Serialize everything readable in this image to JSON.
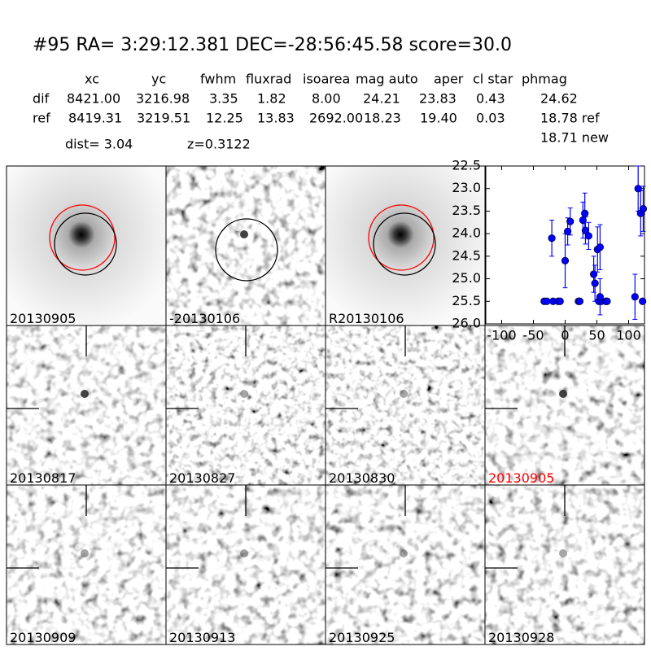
{
  "header": {
    "title": "#95   RA= 3:29:12.381 DEC=-28:56:45.58      score=30.0",
    "dist": "dist=  3.04",
    "z": "z=0.3122",
    "phmag_new": "18.71 new"
  },
  "table": {
    "columns": [
      "xc",
      "yc",
      "fwhm",
      "fluxrad",
      "isoarea",
      "mag auto",
      "aper",
      "cl star",
      "phmag"
    ],
    "rows": [
      [
        "dif",
        "8421.00",
        "3216.98",
        "3.35",
        "1.82",
        "8.00",
        "24.21",
        "23.83",
        "0.43",
        "24.62"
      ],
      [
        "ref",
        "8419.31",
        "3219.51",
        "12.25",
        "13.83",
        "2692.00",
        "18.23",
        "19.40",
        "0.03",
        "18.78 ref"
      ]
    ]
  },
  "panels": [
    "20130905",
    "-20130106",
    "R20130106",
    "20130817",
    "20130827",
    "20130830",
    "20130905",
    "20130909",
    "20130913",
    "20130925",
    "20130928"
  ],
  "chart_data": {
    "type": "scatter",
    "color": "#0000ff",
    "x": [
      -33,
      -29,
      -19,
      -11,
      -8,
      21,
      23,
      53,
      57,
      64,
      66,
      122,
      -21,
      0,
      4,
      8,
      28,
      31,
      32,
      37,
      45,
      47,
      51,
      55,
      55,
      110,
      115,
      119,
      123
    ],
    "values": [
      25.5,
      25.5,
      25.5,
      25.5,
      25.5,
      25.5,
      25.5,
      25.5,
      25.5,
      25.5,
      25.5,
      25.5,
      24.1,
      24.6,
      23.95,
      23.73,
      23.7,
      23.55,
      23.93,
      24.05,
      24.9,
      25.1,
      24.35,
      24.3,
      25.4,
      25.4,
      23.0,
      23.55,
      23.45
    ],
    "errors": [
      null,
      null,
      null,
      null,
      null,
      null,
      null,
      null,
      null,
      null,
      null,
      null,
      0.4,
      0.6,
      0.3,
      0.3,
      0.4,
      0.45,
      0.3,
      0.3,
      0.4,
      0.4,
      0.5,
      0.5,
      0.4,
      0.5,
      0.5,
      0.5,
      0.5
    ],
    "xlim": [
      -125,
      125
    ],
    "ylim": [
      26,
      22.5
    ],
    "xticks": [
      -100,
      -50,
      0,
      50,
      100
    ],
    "yticks": [
      22.5,
      {
        "value": 23,
        "label": "23.0"
      },
      23.5,
      {
        "value": 24,
        "label": "24.0"
      },
      24.5,
      {
        "value": 25,
        "label": "25.0"
      },
      25.5,
      {
        "value": 26,
        "label": "26.0"
      }
    ]
  }
}
